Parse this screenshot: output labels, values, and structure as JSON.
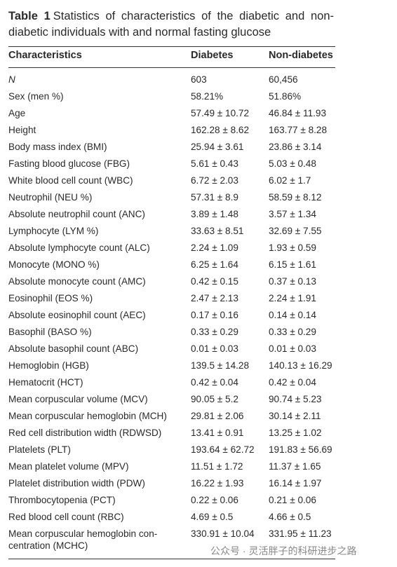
{
  "caption": {
    "label": "Table 1",
    "text": "Statistics of characteristics of the diabetic and non-diabetic individuals with and normal fasting glucose"
  },
  "table": {
    "header": [
      "Characteristics",
      "Diabetes",
      "Non-diabetes"
    ],
    "rows": [
      [
        "N",
        "603",
        "60,456"
      ],
      [
        "Sex (men %)",
        "58.21%",
        "51.86%"
      ],
      [
        "Age",
        "57.49 ± 10.72",
        "46.84 ± 11.93"
      ],
      [
        "Height",
        "162.28 ± 8.62",
        "163.77 ± 8.28"
      ],
      [
        "Body mass index (BMI)",
        "25.94 ± 3.61",
        "23.86 ± 3.14"
      ],
      [
        "Fasting blood glucose (FBG)",
        "5.61 ± 0.43",
        "5.03 ± 0.48"
      ],
      [
        "White blood cell count (WBC)",
        "6.72 ± 2.03",
        "6.02 ± 1.7"
      ],
      [
        "Neutrophil (NEU %)",
        "57.31 ± 8.9",
        "58.59 ± 8.12"
      ],
      [
        "Absolute neutrophil count (ANC)",
        "3.89 ± 1.48",
        "3.57 ± 1.34"
      ],
      [
        "Lymphocyte (LYM %)",
        "33.63 ± 8.51",
        "32.69 ± 7.55"
      ],
      [
        "Absolute lymphocyte count (ALC)",
        "2.24 ± 1.09",
        "1.93 ± 0.59"
      ],
      [
        "Monocyte (MONO %)",
        "6.25 ± 1.64",
        "6.15 ± 1.61"
      ],
      [
        "Absolute monocyte count (AMC)",
        "0.42 ± 0.15",
        "0.37 ± 0.13"
      ],
      [
        "Eosinophil (EOS %)",
        "2.47 ± 2.13",
        "2.24 ± 1.91"
      ],
      [
        "Absolute eosinophil count (AEC)",
        "0.17 ± 0.16",
        "0.14 ± 0.14"
      ],
      [
        "Basophil (BASO %)",
        "0.33 ± 0.29",
        "0.33 ± 0.29"
      ],
      [
        "Absolute basophil count (ABC)",
        "0.01 ± 0.03",
        "0.01 ± 0.03"
      ],
      [
        "Hemoglobin (HGB)",
        "139.5 ± 14.28",
        "140.13 ± 16.29"
      ],
      [
        "Hematocrit (HCT)",
        "0.42 ± 0.04",
        "0.42 ± 0.04"
      ],
      [
        "Mean corpuscular volume (MCV)",
        "90.05 ± 5.2",
        "90.74 ± 5.23"
      ],
      [
        "Mean corpuscular hemoglobin (MCH)",
        "29.81 ± 2.06",
        "30.14 ± 2.11"
      ],
      [
        "Red cell distribution width (RDWSD)",
        "13.41 ± 0.91",
        "13.25 ± 1.02"
      ],
      [
        "Platelets (PLT)",
        "193.64 ± 62.72",
        "191.83 ± 56.69"
      ],
      [
        "Mean platelet volume (MPV)",
        "11.51 ± 1.72",
        "11.37 ± 1.65"
      ],
      [
        "Platelet distribution width (PDW)",
        "16.22 ± 1.93",
        "16.14 ± 1.97"
      ],
      [
        "Thrombocytopenia (PCT)",
        "0.22 ± 0.06",
        "0.21 ± 0.06"
      ],
      [
        "Red blood cell count (RBC)",
        "4.69 ± 0.5",
        "4.66 ± 0.5"
      ],
      [
        "Mean corpuscular hemoglobin con-centration (MCHC)",
        "330.91 ± 10.04",
        "331.95 ± 11.23"
      ]
    ]
  },
  "watermark": "公众号 · 灵活胖子的科研进步之路"
}
